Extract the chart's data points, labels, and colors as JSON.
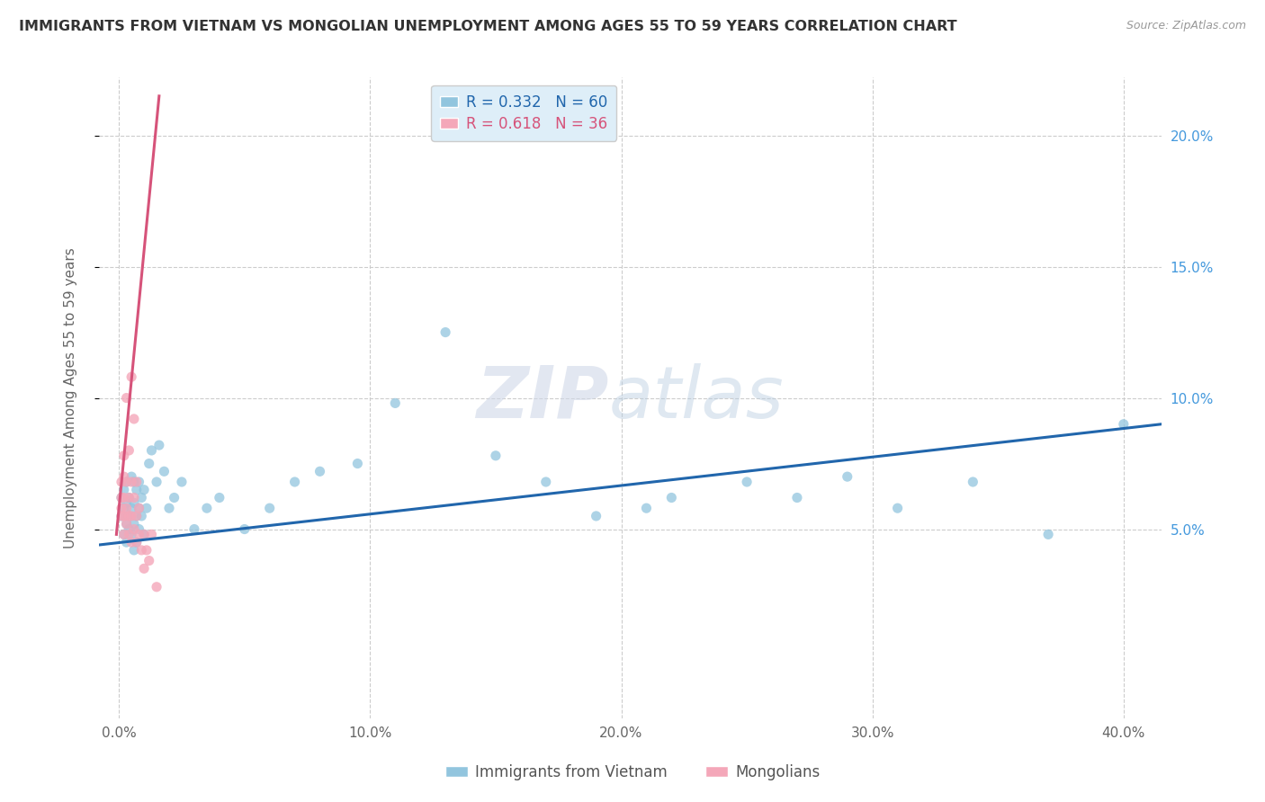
{
  "title": "IMMIGRANTS FROM VIETNAM VS MONGOLIAN UNEMPLOYMENT AMONG AGES 55 TO 59 YEARS CORRELATION CHART",
  "source": "Source: ZipAtlas.com",
  "ylabel": "Unemployment Among Ages 55 to 59 years",
  "xlabel_ticks": [
    "0.0%",
    "10.0%",
    "20.0%",
    "30.0%",
    "40.0%"
  ],
  "xlabel_vals": [
    0.0,
    0.1,
    0.2,
    0.3,
    0.4
  ],
  "ylabel_ticks": [
    "5.0%",
    "10.0%",
    "15.0%",
    "20.0%"
  ],
  "ylabel_vals": [
    0.05,
    0.1,
    0.15,
    0.2
  ],
  "xlim": [
    -0.008,
    0.415
  ],
  "ylim": [
    -0.022,
    0.222
  ],
  "blue_R": 0.332,
  "blue_N": 60,
  "pink_R": 0.618,
  "pink_N": 36,
  "blue_color": "#92c5de",
  "pink_color": "#f4a7b9",
  "blue_line_color": "#2166ac",
  "pink_line_color": "#d6537a",
  "legend_box_color": "#deeef8",
  "watermark_zip": "ZIP",
  "watermark_atlas": "atlas",
  "blue_scatter_x": [
    0.001,
    0.001,
    0.002,
    0.002,
    0.002,
    0.003,
    0.003,
    0.003,
    0.003,
    0.004,
    0.004,
    0.004,
    0.005,
    0.005,
    0.005,
    0.006,
    0.006,
    0.006,
    0.006,
    0.007,
    0.007,
    0.007,
    0.008,
    0.008,
    0.008,
    0.009,
    0.009,
    0.01,
    0.01,
    0.011,
    0.012,
    0.013,
    0.015,
    0.016,
    0.018,
    0.02,
    0.022,
    0.025,
    0.03,
    0.035,
    0.04,
    0.05,
    0.06,
    0.07,
    0.08,
    0.095,
    0.11,
    0.13,
    0.15,
    0.17,
    0.19,
    0.21,
    0.22,
    0.25,
    0.27,
    0.29,
    0.31,
    0.34,
    0.37,
    0.4
  ],
  "blue_scatter_y": [
    0.055,
    0.062,
    0.048,
    0.058,
    0.065,
    0.052,
    0.06,
    0.068,
    0.045,
    0.055,
    0.05,
    0.062,
    0.048,
    0.058,
    0.07,
    0.042,
    0.052,
    0.06,
    0.068,
    0.045,
    0.055,
    0.065,
    0.05,
    0.058,
    0.068,
    0.055,
    0.062,
    0.048,
    0.065,
    0.058,
    0.075,
    0.08,
    0.068,
    0.082,
    0.072,
    0.058,
    0.062,
    0.068,
    0.05,
    0.058,
    0.062,
    0.05,
    0.058,
    0.068,
    0.072,
    0.075,
    0.098,
    0.125,
    0.078,
    0.068,
    0.055,
    0.058,
    0.062,
    0.068,
    0.062,
    0.07,
    0.058,
    0.068,
    0.048,
    0.09
  ],
  "pink_scatter_x": [
    0.001,
    0.001,
    0.001,
    0.001,
    0.002,
    0.002,
    0.002,
    0.002,
    0.002,
    0.003,
    0.003,
    0.003,
    0.003,
    0.004,
    0.004,
    0.004,
    0.004,
    0.005,
    0.005,
    0.005,
    0.005,
    0.006,
    0.006,
    0.006,
    0.007,
    0.007,
    0.007,
    0.008,
    0.008,
    0.009,
    0.01,
    0.01,
    0.011,
    0.012,
    0.013,
    0.015
  ],
  "pink_scatter_y": [
    0.055,
    0.058,
    0.062,
    0.068,
    0.048,
    0.055,
    0.062,
    0.07,
    0.078,
    0.052,
    0.058,
    0.068,
    0.1,
    0.048,
    0.055,
    0.062,
    0.08,
    0.045,
    0.055,
    0.068,
    0.108,
    0.05,
    0.062,
    0.092,
    0.045,
    0.055,
    0.068,
    0.048,
    0.058,
    0.042,
    0.035,
    0.048,
    0.042,
    0.038,
    0.048,
    0.028
  ],
  "blue_line_x": [
    -0.008,
    0.415
  ],
  "blue_line_y_start": 0.044,
  "blue_line_y_end": 0.09,
  "pink_line_x": [
    -0.001,
    0.016
  ],
  "pink_line_y_start": 0.048,
  "pink_line_y_end": 0.215
}
